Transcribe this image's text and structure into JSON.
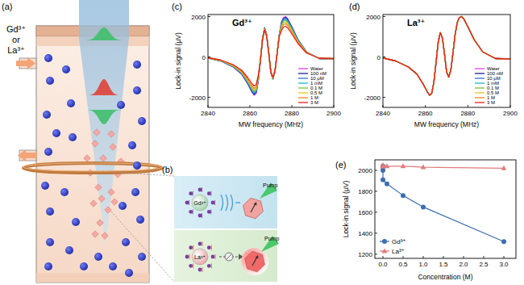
{
  "diagram": {
    "panel_labels": [
      "(a)",
      "(b)",
      "(c)",
      "(d)",
      "(e)"
    ],
    "inlet_label": [
      "Gd³⁺",
      "or",
      "La³⁺"
    ],
    "panel_b": {
      "ions": [
        "Gd³⁺",
        "La³⁺"
      ],
      "pump": [
        "Pump",
        "Pump"
      ]
    }
  },
  "chart_data": [
    {
      "type": "line",
      "title": "Gd³⁺",
      "x_label": "MW frequency (MHz)",
      "y_label": "Lock-in signal (μV)",
      "x": [
        2840,
        2846,
        2852,
        2856,
        2859,
        2861,
        2862,
        2863,
        2864,
        2865,
        2866,
        2867,
        2868,
        2869,
        2870,
        2871,
        2872,
        2873,
        2874,
        2875,
        2876,
        2877,
        2878,
        2880,
        2883,
        2887,
        2893,
        2900
      ],
      "xlim": [
        2840,
        2900
      ],
      "xticks": [
        2840,
        2860,
        2880,
        2900
      ],
      "ylim": [
        -2500,
        2100
      ],
      "yticks": [
        -2000,
        0,
        2000
      ],
      "grid": false,
      "legend": "lower right",
      "series": [
        {
          "name": "Water",
          "color": "#e040f0",
          "values": [
            -50,
            -200,
            -500,
            -850,
            -1350,
            -1750,
            -1900,
            -1800,
            -1200,
            -200,
            900,
            1450,
            1100,
            200,
            -800,
            -1100,
            -700,
            200,
            1100,
            1700,
            1950,
            2000,
            1900,
            1500,
            850,
            250,
            -80,
            -100
          ]
        },
        {
          "name": "100 nM",
          "color": "#1c1c9c",
          "values": [
            -50,
            -200,
            -490,
            -830,
            -1320,
            -1720,
            -1860,
            -1760,
            -1180,
            -200,
            890,
            1440,
            1090,
            200,
            -790,
            -1090,
            -690,
            200,
            1090,
            1670,
            1910,
            1960,
            1860,
            1470,
            830,
            250,
            -80,
            -100
          ]
        },
        {
          "name": "10 μM",
          "color": "#2f6fd6",
          "values": [
            -50,
            -190,
            -480,
            -820,
            -1300,
            -1680,
            -1820,
            -1730,
            -1150,
            -200,
            880,
            1420,
            1080,
            200,
            -780,
            -1080,
            -690,
            200,
            1080,
            1630,
            1870,
            1920,
            1820,
            1440,
            820,
            240,
            -80,
            -100
          ]
        },
        {
          "name": "1 mM",
          "color": "#1fb3c4",
          "values": [
            -50,
            -190,
            -470,
            -790,
            -1260,
            -1630,
            -1770,
            -1670,
            -1120,
            -190,
            870,
            1410,
            1070,
            190,
            -780,
            -1070,
            -680,
            190,
            1070,
            1580,
            1810,
            1860,
            1770,
            1400,
            790,
            230,
            -70,
            -90
          ]
        },
        {
          "name": "0.1 M",
          "color": "#74c043",
          "values": [
            -50,
            -180,
            -450,
            -770,
            -1220,
            -1580,
            -1710,
            -1620,
            -1080,
            -190,
            860,
            1390,
            1060,
            190,
            -770,
            -1060,
            -670,
            190,
            1060,
            1530,
            1760,
            1800,
            1710,
            1350,
            770,
            230,
            -70,
            -90
          ]
        },
        {
          "name": "0.5 M",
          "color": "#e6c41e",
          "values": [
            -40,
            -170,
            -430,
            -730,
            -1160,
            -1510,
            -1630,
            -1550,
            -1030,
            -190,
            860,
            1380,
            1050,
            190,
            -760,
            -1050,
            -670,
            190,
            1050,
            1460,
            1680,
            1720,
            1630,
            1290,
            730,
            220,
            -70,
            -90
          ]
        },
        {
          "name": "1 M",
          "color": "#f2861e",
          "values": [
            -40,
            -160,
            -410,
            -700,
            -1110,
            -1440,
            -1560,
            -1480,
            -980,
            -190,
            850,
            1360,
            1030,
            190,
            -750,
            -1030,
            -660,
            190,
            1030,
            1390,
            1600,
            1640,
            1560,
            1230,
            700,
            210,
            -70,
            -80
          ]
        },
        {
          "name": "3 M",
          "color": "#e3221e",
          "values": [
            -40,
            -150,
            -380,
            -650,
            -1030,
            -1330,
            -1440,
            -1370,
            -910,
            -180,
            830,
            1330,
            1010,
            180,
            -740,
            -1010,
            -640,
            180,
            1010,
            1290,
            1480,
            1520,
            1440,
            1140,
            650,
            190,
            -60,
            -80
          ]
        }
      ]
    },
    {
      "type": "line",
      "title": "La³⁺",
      "x_label": "MW frequency (MHz)",
      "y_label": "Lock-in signal (μV)",
      "x": [
        2840,
        2846,
        2852,
        2856,
        2859,
        2861,
        2862,
        2863,
        2864,
        2865,
        2866,
        2867,
        2868,
        2869,
        2870,
        2871,
        2872,
        2873,
        2874,
        2875,
        2876,
        2877,
        2878,
        2880,
        2883,
        2887,
        2893,
        2900
      ],
      "xlim": [
        2840,
        2900
      ],
      "xticks": [
        2840,
        2860,
        2880,
        2900
      ],
      "ylim": [
        -2500,
        2100
      ],
      "yticks": [
        -2000,
        0,
        2000
      ],
      "grid": false,
      "legend": "lower right",
      "series": [
        {
          "name": "Water",
          "color": "#e040f0",
          "values": [
            -50,
            -200,
            -500,
            -850,
            -1350,
            -1750,
            -1900,
            -1800,
            -1250,
            -300,
            700,
            1200,
            950,
            150,
            -750,
            -1000,
            -650,
            200,
            1100,
            1700,
            1950,
            2000,
            1900,
            1500,
            850,
            250,
            -80,
            -100
          ]
        },
        {
          "name": "100 nM",
          "color": "#1c1c9c",
          "values": [
            -50,
            -200,
            -500,
            -850,
            -1350,
            -1750,
            -1900,
            -1800,
            -1250,
            -300,
            700,
            1200,
            950,
            150,
            -750,
            -1000,
            -650,
            200,
            1100,
            1700,
            1950,
            2000,
            1900,
            1500,
            850,
            250,
            -80,
            -100
          ]
        },
        {
          "name": "10 μM",
          "color": "#2f6fd6",
          "values": [
            -50,
            -200,
            -500,
            -850,
            -1350,
            -1750,
            -1900,
            -1800,
            -1250,
            -300,
            700,
            1200,
            950,
            150,
            -750,
            -1000,
            -650,
            200,
            1100,
            1700,
            1950,
            2000,
            1900,
            1500,
            850,
            250,
            -80,
            -100
          ]
        },
        {
          "name": "1 mM",
          "color": "#1fb3c4",
          "values": [
            -50,
            -200,
            -500,
            -850,
            -1350,
            -1750,
            -1900,
            -1800,
            -1250,
            -300,
            700,
            1200,
            950,
            150,
            -750,
            -1000,
            -650,
            200,
            1100,
            1700,
            1950,
            2000,
            1900,
            1500,
            850,
            250,
            -80,
            -100
          ]
        },
        {
          "name": "0.1 M",
          "color": "#74c043",
          "values": [
            -50,
            -200,
            -500,
            -850,
            -1350,
            -1750,
            -1900,
            -1800,
            -1250,
            -300,
            700,
            1200,
            950,
            150,
            -750,
            -1000,
            -650,
            200,
            1100,
            1700,
            1950,
            2000,
            1900,
            1500,
            850,
            250,
            -80,
            -100
          ]
        },
        {
          "name": "0.5 M",
          "color": "#e6c41e",
          "values": [
            -50,
            -200,
            -500,
            -850,
            -1350,
            -1750,
            -1900,
            -1800,
            -1250,
            -300,
            700,
            1200,
            950,
            150,
            -750,
            -1000,
            -650,
            200,
            1100,
            1700,
            1950,
            2000,
            1900,
            1500,
            850,
            250,
            -80,
            -100
          ]
        },
        {
          "name": "1 M",
          "color": "#f2861e",
          "values": [
            -50,
            -200,
            -500,
            -850,
            -1350,
            -1750,
            -1900,
            -1800,
            -1250,
            -300,
            700,
            1200,
            950,
            150,
            -750,
            -1000,
            -650,
            200,
            1100,
            1700,
            1950,
            2000,
            1900,
            1500,
            850,
            250,
            -80,
            -100
          ]
        },
        {
          "name": "3 M",
          "color": "#e3221e",
          "values": [
            -50,
            -200,
            -500,
            -850,
            -1350,
            -1750,
            -1900,
            -1800,
            -1250,
            -300,
            700,
            1200,
            950,
            150,
            -750,
            -1000,
            -650,
            200,
            1100,
            1700,
            1950,
            2000,
            1900,
            1500,
            850,
            250,
            -80,
            -100
          ]
        }
      ]
    },
    {
      "type": "line",
      "x_label": "Concentration (M)",
      "y_label": "Lock-in signal (μV)",
      "x": [
        0,
        1e-07,
        1e-05,
        0.001,
        0.1,
        0.5,
        1,
        3
      ],
      "xlim": [
        -0.2,
        3.3
      ],
      "xticks": [
        {
          "value": 0,
          "label": "0.0"
        },
        {
          "value": 0.5,
          "label": "0.5"
        },
        {
          "value": 1,
          "label": "1.0"
        },
        {
          "value": 1.5,
          "label": "1.5"
        },
        {
          "value": 2,
          "label": "2.0"
        },
        {
          "value": 2.5,
          "label": "2.5"
        },
        {
          "value": 3,
          "label": "3.0"
        }
      ],
      "ylim": [
        1160,
        2100
      ],
      "yticks": [
        1200,
        1400,
        1600,
        1800,
        2000
      ],
      "grid": false,
      "legend": "lower left",
      "series": [
        {
          "name": "Gd³⁺",
          "color": "#3d6fb0",
          "marker": "circle",
          "values": [
            2040,
            2030,
            2000,
            1910,
            1870,
            1760,
            1650,
            1320
          ]
        },
        {
          "name": "La³⁺",
          "color": "#e07b7b",
          "marker": "triangle",
          "values": [
            2040,
            2050,
            2040,
            2040,
            2040,
            2040,
            2030,
            2020
          ]
        }
      ]
    }
  ]
}
